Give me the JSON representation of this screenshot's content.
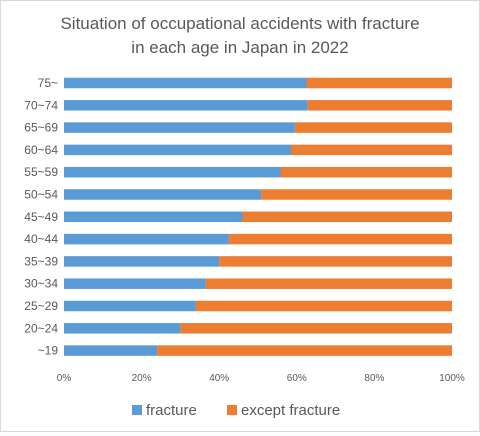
{
  "chart_data": {
    "type": "bar",
    "orientation": "horizontal",
    "stacked": "percent",
    "title": [
      "Situation of occupational accidents with fracture",
      "in each age in Japan in 2022"
    ],
    "categories": [
      "75~",
      "70~74",
      "65~69",
      "60~64",
      "55~59",
      "50~54",
      "45~49",
      "40~44",
      "35~39",
      "30~34",
      "25~29",
      "20~24",
      "~19"
    ],
    "series": [
      {
        "name": "fracture",
        "color": "#5b9bd5",
        "values": [
          62.5,
          62.8,
          59.5,
          58.5,
          55.8,
          50.8,
          46.0,
          42.5,
          40.0,
          36.5,
          34.0,
          30.0,
          24.0
        ]
      },
      {
        "name": "except fracture",
        "color": "#ed7d31",
        "values": [
          37.5,
          37.2,
          40.5,
          41.5,
          44.2,
          49.2,
          54.0,
          57.5,
          60.0,
          63.5,
          66.0,
          70.0,
          76.0
        ]
      }
    ],
    "xlim": [
      0,
      100
    ],
    "xticks": [
      "0%",
      "20%",
      "40%",
      "60%",
      "80%",
      "100%"
    ],
    "legend": "bottom",
    "grid": false
  }
}
